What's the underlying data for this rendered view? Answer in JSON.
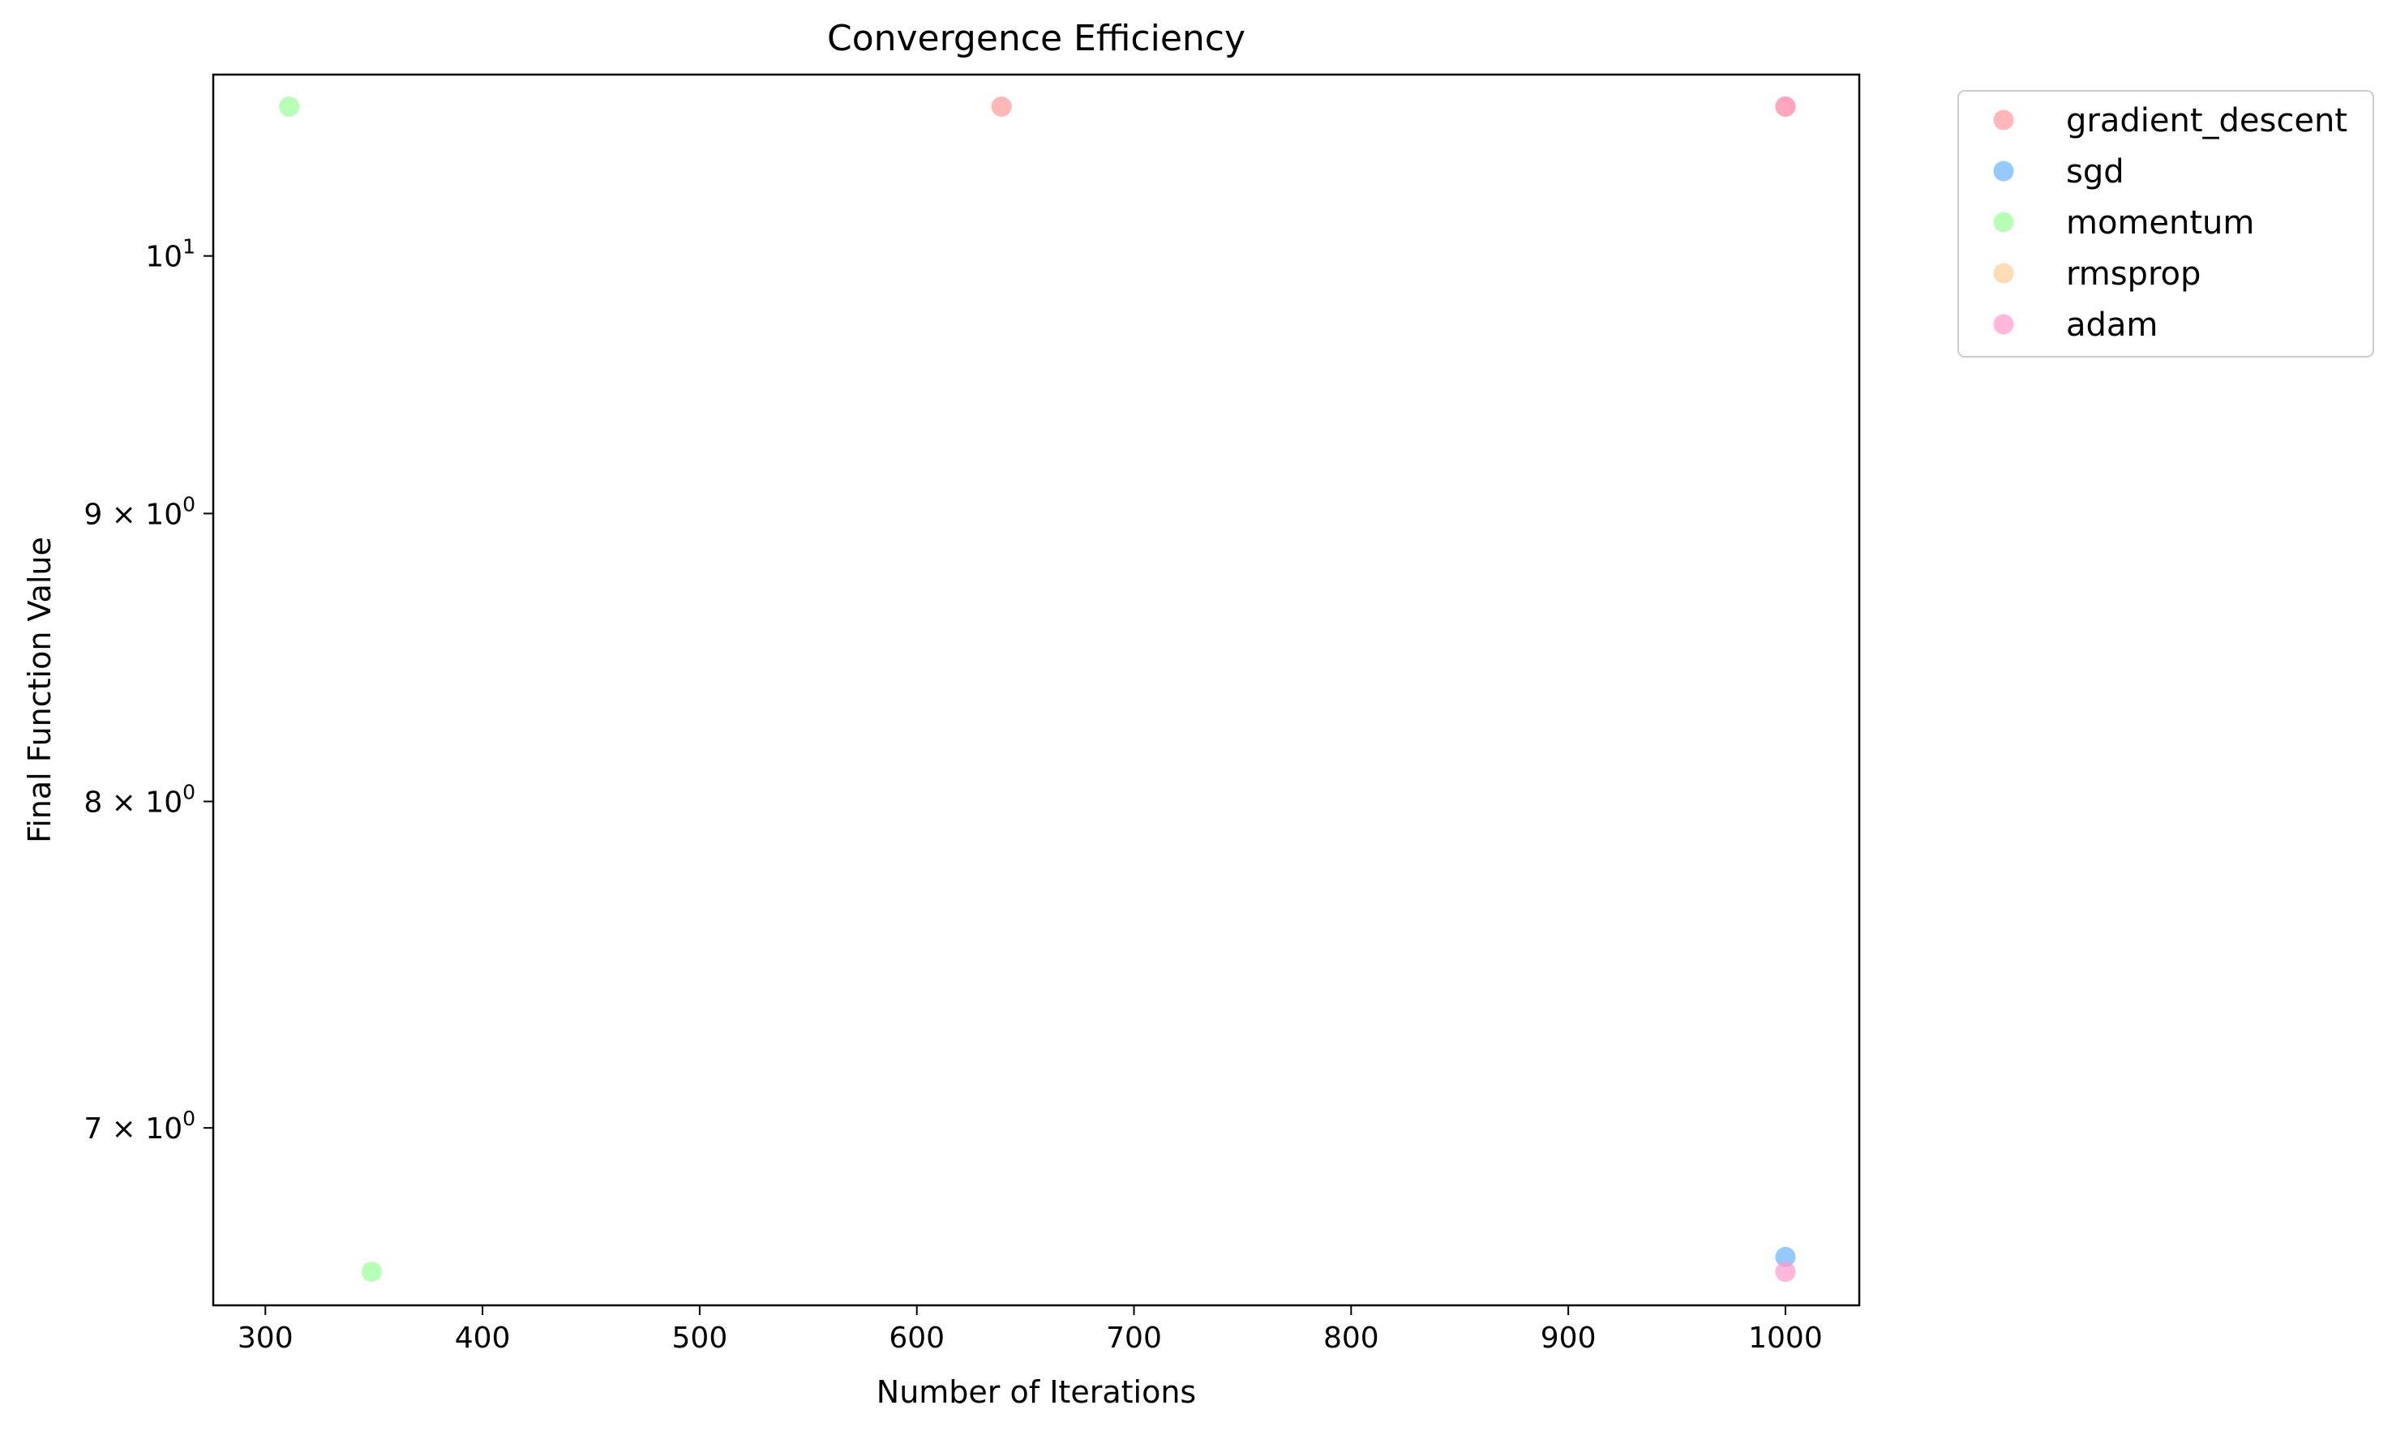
{
  "chart_data": {
    "type": "scatter",
    "title": "Convergence Efficiency",
    "xlabel": "Number of Iterations",
    "ylabel": "Final Function Value",
    "xlim": [
      276,
      1034
    ],
    "ylim": [
      6.51,
      10.77
    ],
    "yscale": "log",
    "grid": false,
    "legend_position": "outside-right",
    "x_ticks": [
      {
        "value": 300,
        "label": "300"
      },
      {
        "value": 400,
        "label": "400"
      },
      {
        "value": 500,
        "label": "500"
      },
      {
        "value": 600,
        "label": "600"
      },
      {
        "value": 700,
        "label": "700"
      },
      {
        "value": 800,
        "label": "800"
      },
      {
        "value": 900,
        "label": "900"
      },
      {
        "value": 1000,
        "label": "1000"
      }
    ],
    "y_ticks": [
      {
        "value": 7,
        "mantissa": "7",
        "base": "10",
        "exp": "0"
      },
      {
        "value": 8,
        "mantissa": "8",
        "base": "10",
        "exp": "0"
      },
      {
        "value": 9,
        "mantissa": "9",
        "base": "10",
        "exp": "0"
      },
      {
        "value": 10,
        "mantissa": "",
        "base": "10",
        "exp": "1"
      }
    ],
    "series": [
      {
        "name": "gradient_descent",
        "color": "#ff9999",
        "points": [
          {
            "x": 639,
            "y": 10.63
          },
          {
            "x": 1000,
            "y": 10.63
          }
        ]
      },
      {
        "name": "sgd",
        "color": "#66b3ff",
        "points": [
          {
            "x": 1000,
            "y": 6.64
          }
        ]
      },
      {
        "name": "momentum",
        "color": "#99ff99",
        "points": [
          {
            "x": 311,
            "y": 10.63
          },
          {
            "x": 349,
            "y": 6.6
          }
        ]
      },
      {
        "name": "rmsprop",
        "color": "#ffcc99",
        "points": [
          {
            "x": 1000,
            "y": 10.63
          }
        ]
      },
      {
        "name": "adam",
        "color": "#ff99cc",
        "points": [
          {
            "x": 1000,
            "y": 10.63
          },
          {
            "x": 1000,
            "y": 6.6
          }
        ]
      }
    ]
  }
}
